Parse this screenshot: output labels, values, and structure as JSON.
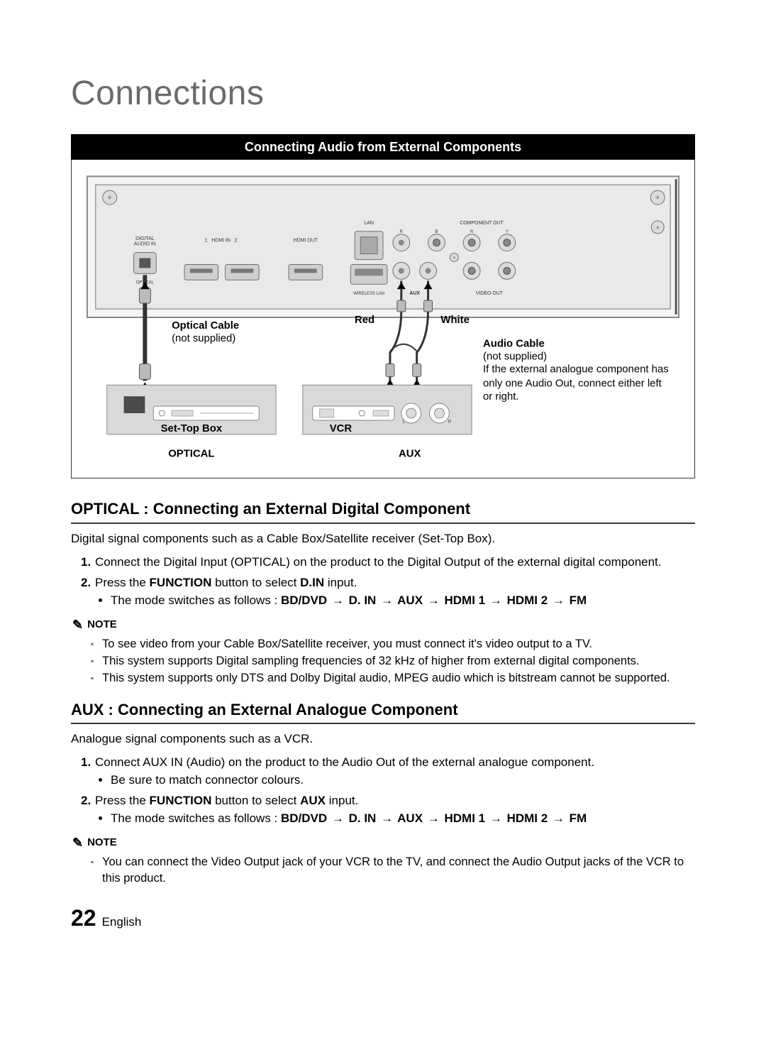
{
  "page_title": "Connections",
  "banner": "Connecting Audio from External Components",
  "diagram": {
    "backpanel": {
      "fill": "#e9e9e9",
      "stroke": "#707070",
      "labels": {
        "digital_audio_in": "DIGITAL\nAUDIO IN",
        "hdmi_in": "HDMI IN",
        "hdmi_in_1": "1",
        "hdmi_in_2": "2",
        "hdmi_out": "HDMI OUT",
        "lan": "LAN",
        "wireless_lan": "WIRELESS LAN",
        "aux": "AUX",
        "component_out": "COMPONENT OUT",
        "video_out": "VIDEO OUT",
        "optical_port": "OPTICAL",
        "r": "R",
        "l": "L",
        "y": "Y",
        "b": "B"
      }
    },
    "annotations": {
      "optical_cable_title": "Optical Cable",
      "optical_cable_sub": "(not supplied)",
      "set_top_box": "Set-Top Box",
      "vcr": "VCR",
      "red": "Red",
      "white": "White",
      "audio_cable_title": "Audio Cable",
      "audio_cable_sub": "(not supplied)",
      "audio_cable_note": "If the external analogue component has only one Audio Out, connect either left or right.",
      "optical_label": "OPTICAL",
      "aux_label": "AUX"
    },
    "cable_area_fill": "#d9d9d9",
    "text_color": "#000000"
  },
  "section_optical": {
    "heading": "OPTICAL : Connecting an External Digital Component",
    "intro": "Digital signal components such as a Cable Box/Satellite receiver (Set-Top Box).",
    "step1_pre": "Connect the Digital Input (OPTICAL) on the product to the Digital Output of the external digital component.",
    "step2_pre": "Press the ",
    "step2_bold1": "FUNCTION",
    "step2_mid": " button to select ",
    "step2_bold2": "D.IN",
    "step2_post": " input.",
    "mode_pre": "The mode switches as follows : ",
    "mode_seq": [
      "BD/DVD",
      "D. IN",
      "AUX",
      "HDMI 1",
      "HDMI 2",
      "FM"
    ],
    "notes": [
      "To see video from your Cable Box/Satellite receiver, you must connect it's video output to a TV.",
      "This system supports Digital sampling frequencies of 32 kHz of higher from external digital components.",
      "This system supports only DTS and Dolby Digital audio, MPEG audio which is bitstream cannot be supported."
    ]
  },
  "section_aux": {
    "heading": "AUX : Connecting an External Analogue Component",
    "intro": "Analogue signal components such as a VCR.",
    "step1_pre": "Connect AUX IN (Audio) on the product to the Audio Out of the external analogue component.",
    "step1_bullet": "Be sure to match connector colours.",
    "step2_pre": "Press the ",
    "step2_bold1": "FUNCTION",
    "step2_mid": " button to select ",
    "step2_bold2": "AUX",
    "step2_post": " input.",
    "mode_pre": "The mode switches as follows : ",
    "mode_seq": [
      "BD/DVD",
      "D. IN",
      "AUX",
      "HDMI 1",
      "HDMI 2",
      "FM"
    ],
    "notes": [
      "You can connect the Video Output jack of your VCR to the TV, and connect the Audio Output jacks of the VCR to this product."
    ]
  },
  "note_label": "NOTE",
  "arrow_glyph": "→",
  "footer": {
    "page": "22",
    "lang": "English"
  }
}
